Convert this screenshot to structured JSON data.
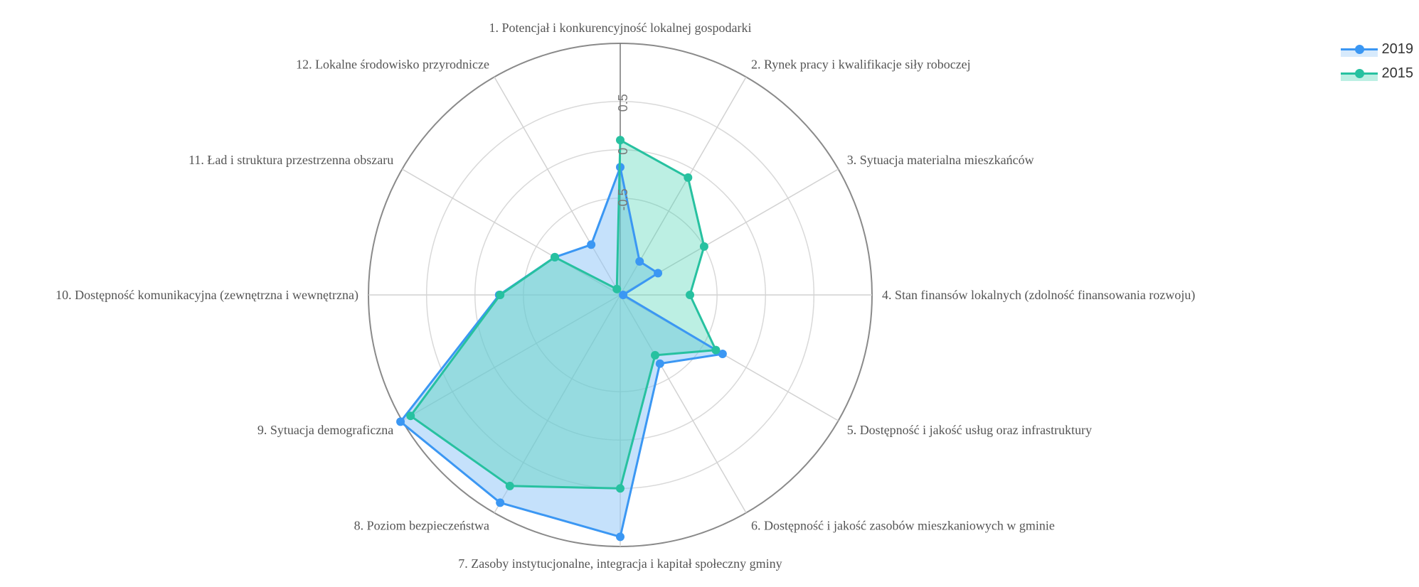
{
  "chart_data": {
    "type": "radar",
    "categories": [
      "1. Potencjał i konkurencyjność lokalnej gospodarki",
      "2. Rynek pracy i kwalifikacje siły roboczej",
      "3. Sytuacja materialna mieszkańców",
      "4. Stan finansów lokalnych  (zdolność finansowania rozwoju)",
      "5. Dostępność i jakość usług oraz infrastruktury",
      "6. Dostępność i jakość zasobów mieszkaniowych w gminie",
      "7. Zasoby instytucjonalne, integracja i kapitał społeczny gminy",
      "8. Poziom bezpieczeństwa",
      "9. Sytuacja demograficzna",
      "10. Dostępność komunikacyjna (zewnętrzna i wewnętrzna)",
      "11. Ład i struktura przestrzenna obszaru",
      "12. Lokalne środowisko przyrodnicze"
    ],
    "r_range": [
      -1.5,
      1.1
    ],
    "ticks": [
      -0.5,
      0,
      0.5
    ],
    "tick_labels": [
      "-0.5",
      "0",
      "0.5"
    ],
    "series": [
      {
        "name": "2019",
        "color": "#3b97f3",
        "fill": "#8cc4f7",
        "values": [
          -0.18,
          -1.1,
          -1.05,
          -1.47,
          -0.28,
          -0.68,
          1.0,
          0.98,
          1.12,
          -0.25,
          -0.72,
          -0.9
        ]
      },
      {
        "name": "2015",
        "color": "#27c1a0",
        "fill": "#3ed1b0",
        "values": [
          0.1,
          -0.1,
          -0.5,
          -0.78,
          -0.36,
          -0.78,
          0.5,
          0.78,
          1.0,
          -0.26,
          -0.72,
          -1.43
        ]
      }
    ],
    "legend_position": "top-right",
    "grid": true
  }
}
